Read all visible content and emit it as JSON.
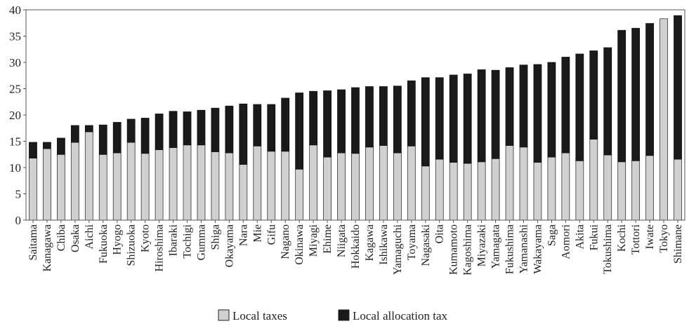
{
  "chart_data": {
    "type": "bar",
    "stacked": true,
    "ylim": [
      0,
      40
    ],
    "yticks": [
      "0",
      "5",
      "10",
      "15",
      "20",
      "25",
      "30",
      "35",
      "40"
    ],
    "grid": false,
    "legend_position": "bottom",
    "categories": [
      "Saitama",
      "Kanagawa",
      "Chiba",
      "Osaka",
      "Aichi",
      "Fukuoka",
      "Hyogo",
      "Shizuoka",
      "Kyoto",
      "Hiroshima",
      "Ibaraki",
      "Tochigi",
      "Gumma",
      "Shiga",
      "Okayama",
      "Nara",
      "Mie",
      "Gifu",
      "Nagano",
      "Okinawa",
      "Miyagi",
      "Ehime",
      "Niigata",
      "Hokkaido",
      "Kagawa",
      "Ishikawa",
      "Yamaguchi",
      "Toyama",
      "Nagasaki",
      "Oita",
      "Kumamoto",
      "Kagoshima",
      "Miyazaki",
      "Yamagata",
      "Fukushima",
      "Yamanashi",
      "Wakayama",
      "Saga",
      "Aomori",
      "Akita",
      "Fukui",
      "Tokushima",
      "Kochi",
      "Tottori",
      "Iwate",
      "Tokyo",
      "Shimane"
    ],
    "series": [
      {
        "name": "Local taxes",
        "color": "#d0d0d0",
        "values": [
          11.8,
          13.6,
          12.5,
          14.8,
          16.8,
          12.5,
          12.8,
          14.8,
          12.7,
          13.4,
          13.8,
          14.3,
          14.3,
          13.0,
          12.8,
          10.6,
          14.1,
          13.1,
          13.1,
          9.7,
          14.3,
          12.0,
          12.8,
          12.7,
          13.9,
          14.2,
          12.8,
          14.1,
          10.3,
          11.6,
          11.0,
          10.8,
          11.1,
          11.7,
          14.2,
          13.9,
          11.0,
          12.0,
          12.8,
          11.3,
          15.4,
          12.4,
          11.1,
          11.3,
          12.3,
          38.3,
          11.6
        ]
      },
      {
        "name": "Local allocation tax",
        "color": "#1a1a1a",
        "values": [
          3.0,
          1.2,
          3.1,
          3.2,
          1.2,
          5.6,
          5.8,
          4.4,
          6.7,
          6.8,
          6.9,
          6.3,
          6.6,
          8.3,
          8.9,
          11.5,
          7.9,
          8.9,
          10.1,
          14.5,
          10.2,
          12.6,
          12.0,
          12.5,
          11.5,
          11.2,
          12.7,
          12.4,
          16.8,
          15.5,
          16.6,
          17.0,
          17.5,
          16.8,
          14.8,
          15.6,
          18.6,
          18.0,
          18.2,
          20.3,
          16.8,
          20.4,
          25.0,
          25.2,
          25.1,
          0.0,
          27.3
        ]
      }
    ]
  }
}
